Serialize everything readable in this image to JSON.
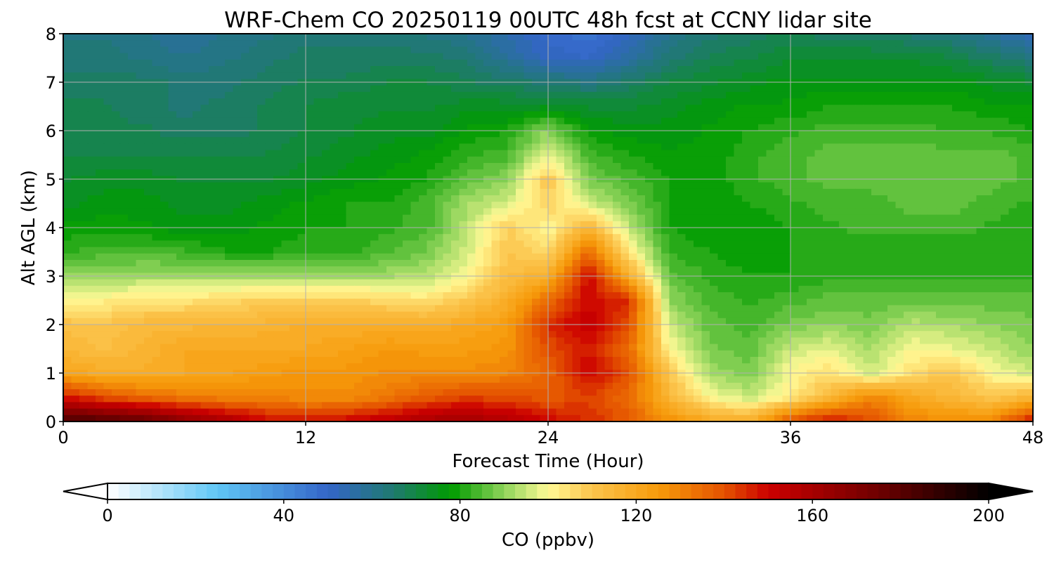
{
  "chart_data": {
    "type": "heatmap",
    "title": "WRF-Chem CO  20250119 00UTC 48h fcst at CCNY lidar site",
    "xlabel": "Forecast Time (Hour)",
    "ylabel": "Alt AGL (km)",
    "xlim": [
      0,
      48
    ],
    "ylim": [
      0,
      8
    ],
    "x_ticks": [
      0,
      12,
      24,
      36,
      48
    ],
    "y_ticks": [
      0,
      1,
      2,
      3,
      4,
      5,
      6,
      7,
      8
    ],
    "grid": true,
    "x": [
      0,
      2,
      4,
      6,
      8,
      10,
      12,
      14,
      16,
      18,
      20,
      22,
      24,
      26,
      28,
      30,
      32,
      34,
      36,
      38,
      40,
      42,
      44,
      46,
      48
    ],
    "y": [
      0,
      0.5,
      1,
      1.5,
      2,
      2.5,
      3,
      3.5,
      4,
      4.5,
      5,
      5.5,
      6,
      6.5,
      7,
      7.5,
      8
    ],
    "values": [
      [
        185,
        182,
        178,
        168,
        160,
        150,
        148,
        150,
        155,
        160,
        162,
        158,
        150,
        145,
        138,
        128,
        120,
        118,
        140,
        150,
        140,
        130,
        128,
        130,
        150
      ],
      [
        148,
        140,
        135,
        132,
        130,
        130,
        128,
        128,
        132,
        138,
        142,
        140,
        138,
        142,
        135,
        115,
        100,
        95,
        102,
        115,
        130,
        120,
        115,
        110,
        115
      ],
      [
        122,
        118,
        118,
        120,
        122,
        124,
        126,
        126,
        128,
        128,
        128,
        130,
        136,
        150,
        140,
        110,
        92,
        88,
        100,
        105,
        95,
        105,
        110,
        100,
        95
      ],
      [
        115,
        112,
        116,
        120,
        120,
        120,
        120,
        122,
        125,
        124,
        124,
        126,
        140,
        148,
        135,
        100,
        88,
        86,
        95,
        98,
        92,
        100,
        98,
        95,
        90
      ],
      [
        112,
        110,
        114,
        114,
        115,
        116,
        118,
        118,
        118,
        118,
        120,
        124,
        145,
        152,
        140,
        96,
        86,
        84,
        88,
        90,
        88,
        94,
        92,
        90,
        88
      ],
      [
        100,
        102,
        104,
        104,
        106,
        108,
        108,
        108,
        106,
        104,
        110,
        118,
        135,
        150,
        145,
        90,
        84,
        82,
        84,
        86,
        86,
        86,
        86,
        86,
        86
      ],
      [
        90,
        90,
        92,
        92,
        92,
        92,
        92,
        92,
        92,
        94,
        100,
        112,
        118,
        150,
        118,
        86,
        82,
        80,
        80,
        82,
        82,
        82,
        82,
        82,
        82
      ],
      [
        82,
        84,
        84,
        83,
        80,
        80,
        81,
        82,
        84,
        88,
        96,
        110,
        106,
        135,
        104,
        82,
        80,
        78,
        80,
        80,
        80,
        80,
        80,
        80,
        80
      ],
      [
        78,
        79,
        78,
        76,
        76,
        78,
        80,
        80,
        82,
        84,
        94,
        108,
        100,
        115,
        94,
        80,
        78,
        78,
        80,
        82,
        84,
        84,
        84,
        82,
        80
      ],
      [
        74,
        76,
        76,
        74,
        74,
        76,
        78,
        80,
        80,
        84,
        92,
        96,
        108,
        96,
        88,
        80,
        78,
        80,
        82,
        84,
        84,
        86,
        86,
        84,
        82
      ],
      [
        72,
        74,
        74,
        72,
        72,
        72,
        74,
        76,
        78,
        80,
        86,
        90,
        110,
        88,
        84,
        80,
        78,
        82,
        84,
        86,
        86,
        86,
        86,
        86,
        84
      ],
      [
        70,
        70,
        70,
        70,
        70,
        70,
        72,
        74,
        76,
        78,
        82,
        84,
        98,
        84,
        80,
        78,
        78,
        82,
        84,
        86,
        86,
        86,
        86,
        86,
        84
      ],
      [
        68,
        68,
        68,
        66,
        66,
        68,
        70,
        72,
        74,
        74,
        78,
        80,
        90,
        78,
        76,
        76,
        78,
        80,
        82,
        84,
        84,
        84,
        82,
        82,
        80
      ],
      [
        68,
        68,
        66,
        64,
        66,
        68,
        70,
        72,
        72,
        72,
        74,
        74,
        74,
        72,
        72,
        74,
        76,
        78,
        78,
        80,
        80,
        80,
        80,
        78,
        78
      ],
      [
        66,
        66,
        66,
        64,
        64,
        66,
        68,
        68,
        70,
        70,
        68,
        66,
        64,
        62,
        66,
        70,
        72,
        74,
        76,
        76,
        76,
        76,
        76,
        74,
        72
      ],
      [
        64,
        64,
        62,
        60,
        62,
        64,
        66,
        66,
        66,
        66,
        64,
        58,
        52,
        50,
        56,
        64,
        68,
        70,
        72,
        72,
        72,
        72,
        70,
        66,
        62
      ],
      [
        62,
        62,
        60,
        58,
        60,
        62,
        64,
        64,
        64,
        62,
        60,
        54,
        48,
        46,
        52,
        60,
        64,
        66,
        68,
        66,
        66,
        64,
        62,
        58,
        52
      ]
    ],
    "colorbar": {
      "label": "CO  (ppbv)",
      "min": 0,
      "max": 200,
      "ticks": [
        0,
        40,
        80,
        120,
        160,
        200
      ],
      "extend": "both",
      "orientation": "horizontal",
      "stops": [
        {
          "v": 0,
          "c": "#ffffff"
        },
        {
          "v": 25,
          "c": "#5fc6f5"
        },
        {
          "v": 50,
          "c": "#3465c8"
        },
        {
          "v": 65,
          "c": "#1f7a6e"
        },
        {
          "v": 78,
          "c": "#009b00"
        },
        {
          "v": 90,
          "c": "#8fd45a"
        },
        {
          "v": 100,
          "c": "#fffa96"
        },
        {
          "v": 110,
          "c": "#fbc44c"
        },
        {
          "v": 125,
          "c": "#f79b0a"
        },
        {
          "v": 140,
          "c": "#e45200"
        },
        {
          "v": 150,
          "c": "#cc0000"
        },
        {
          "v": 175,
          "c": "#6e0000"
        },
        {
          "v": 200,
          "c": "#000000"
        }
      ]
    }
  }
}
